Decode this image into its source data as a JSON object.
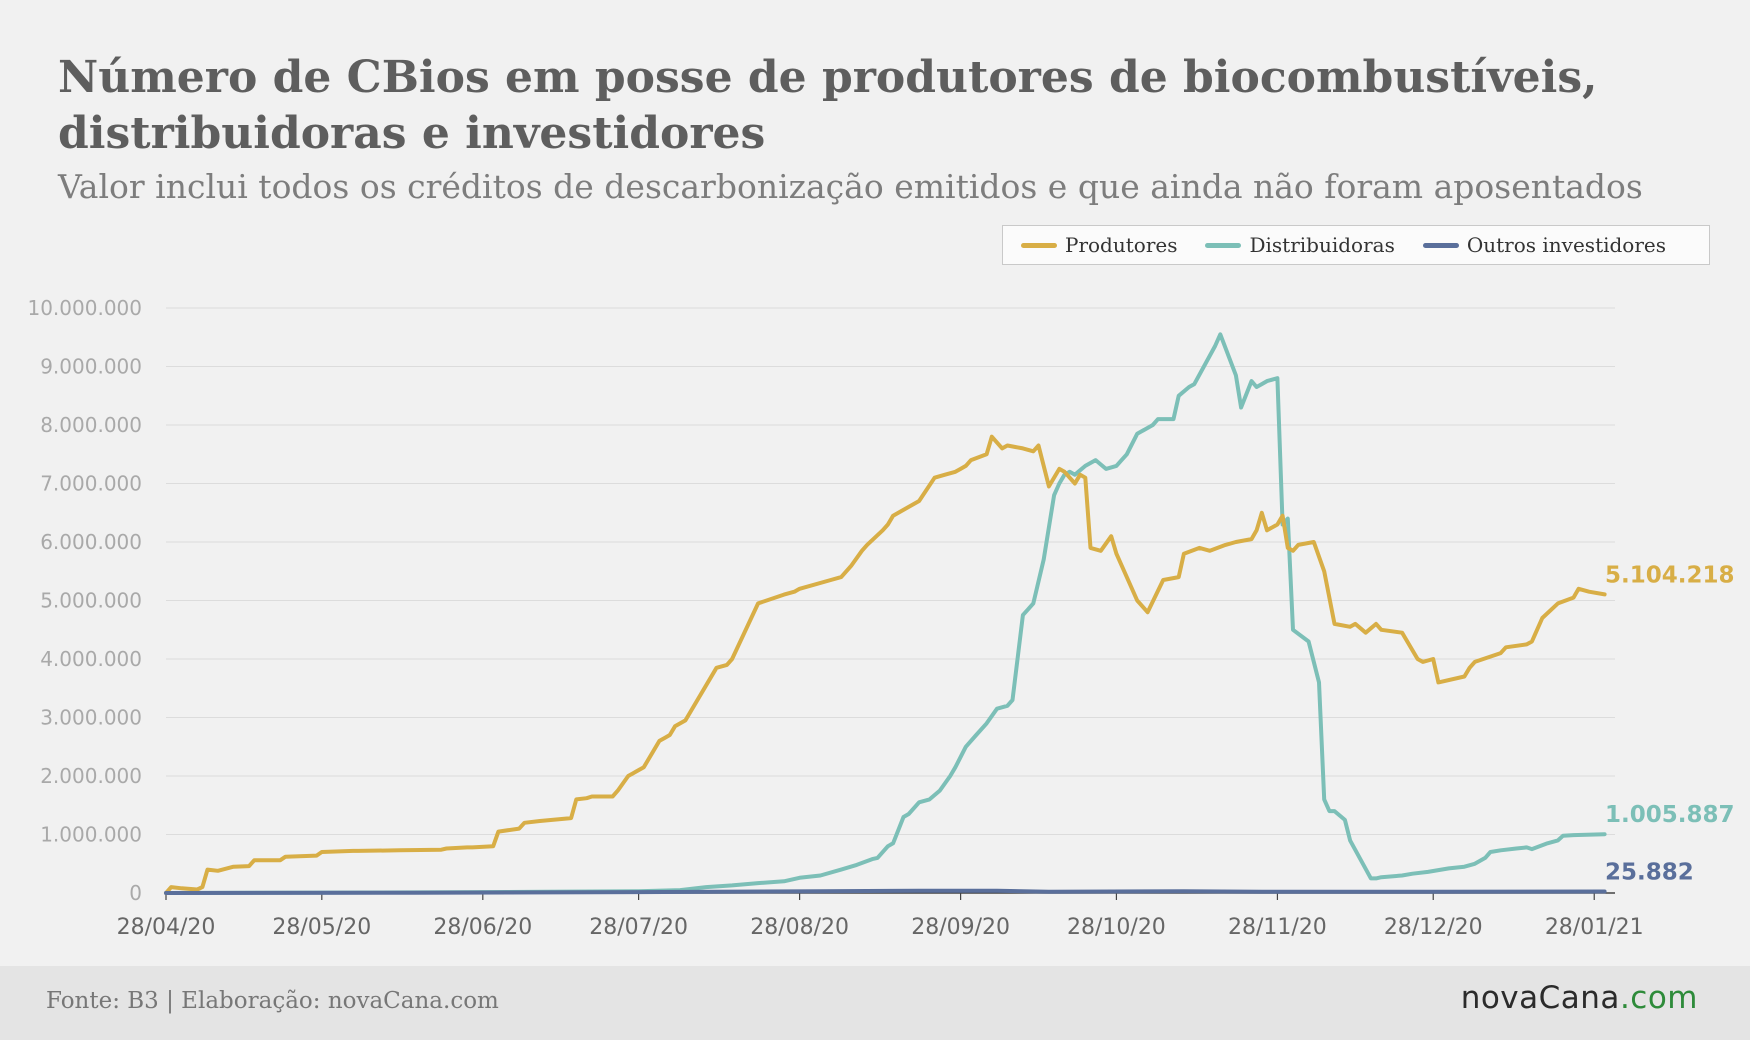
{
  "title": "Número de CBios em posse de produtores de biocombustíveis, distribuidoras e investidores",
  "subtitle": "Valor inclui todos os créditos de descarbonização emitidos e que ainda não foram aposentados",
  "footer": {
    "source": "Fonte: B3 | Elaboração: novaCana.com",
    "brand_main": "novaCana",
    "brand_suffix": ".com"
  },
  "colors": {
    "produtores": "#d8ae46",
    "distribuidoras": "#7cbfb7",
    "outros": "#5a6f9b",
    "grid": "#dcdcdc",
    "tick": "#a9a9a9",
    "xtick": "#666666"
  },
  "chart_data": {
    "type": "line",
    "title": "Número de CBios em posse de produtores de biocombustíveis, distribuidoras e investidores",
    "subtitle": "Valor inclui todos os créditos de descarbonização emitidos e que ainda não foram aposentados",
    "xlabel": "",
    "ylabel": "",
    "ylim": [
      0,
      10000000
    ],
    "yticks": [
      0,
      1000000,
      2000000,
      3000000,
      4000000,
      5000000,
      6000000,
      7000000,
      8000000,
      9000000,
      10000000
    ],
    "ytick_labels": [
      "0",
      "1.000.000",
      "2.000.000",
      "3.000.000",
      "4.000.000",
      "5.000.000",
      "6.000.000",
      "7.000.000",
      "8.000.000",
      "9.000.000",
      "10.000.000"
    ],
    "xlim": [
      "2020-04-28",
      "2021-02-01"
    ],
    "xticks": [
      "2020-04-28",
      "2020-05-28",
      "2020-06-28",
      "2020-07-28",
      "2020-08-28",
      "2020-09-28",
      "2020-10-28",
      "2020-11-28",
      "2020-12-28",
      "2021-01-28"
    ],
    "xtick_labels": [
      "28/04/20",
      "28/05/20",
      "28/06/20",
      "28/07/20",
      "28/08/20",
      "28/09/20",
      "28/10/20",
      "28/11/20",
      "28/12/20",
      "28/01/21"
    ],
    "grid": true,
    "legend_position": "top-right",
    "series": [
      {
        "name": "Produtores",
        "end_label": "5.104.218",
        "x": [
          "2020-04-28",
          "2020-04-29",
          "2020-05-01",
          "2020-05-04",
          "2020-05-05",
          "2020-05-06",
          "2020-05-08",
          "2020-05-11",
          "2020-05-14",
          "2020-05-15",
          "2020-05-20",
          "2020-05-21",
          "2020-05-27",
          "2020-05-28",
          "2020-06-03",
          "2020-06-04",
          "2020-06-12",
          "2020-06-20",
          "2020-06-21",
          "2020-06-25",
          "2020-06-26",
          "2020-06-30",
          "2020-07-01",
          "2020-07-05",
          "2020-07-06",
          "2020-07-09",
          "2020-07-15",
          "2020-07-16",
          "2020-07-18",
          "2020-07-19",
          "2020-07-23",
          "2020-07-24",
          "2020-07-26",
          "2020-07-27",
          "2020-07-28",
          "2020-07-29",
          "2020-08-01",
          "2020-08-02",
          "2020-08-03",
          "2020-08-04",
          "2020-08-06",
          "2020-08-12",
          "2020-08-14",
          "2020-08-15",
          "2020-08-20",
          "2020-08-25",
          "2020-08-27",
          "2020-08-28",
          "2020-09-03",
          "2020-09-05",
          "2020-09-07",
          "2020-09-09",
          "2020-09-10",
          "2020-09-13",
          "2020-09-14",
          "2020-09-15",
          "2020-09-20",
          "2020-09-23",
          "2020-09-25",
          "2020-09-27",
          "2020-09-28",
          "2020-09-29",
          "2020-09-30",
          "2020-10-03",
          "2020-10-04",
          "2020-10-06",
          "2020-10-07",
          "2020-10-10",
          "2020-10-12",
          "2020-10-13",
          "2020-10-14",
          "2020-10-15",
          "2020-10-17",
          "2020-10-18",
          "2020-10-20",
          "2020-10-21",
          "2020-10-22",
          "2020-10-23",
          "2020-10-25",
          "2020-10-27",
          "2020-10-28",
          "2020-11-01",
          "2020-11-03",
          "2020-11-06",
          "2020-11-09",
          "2020-11-10",
          "2020-11-13",
          "2020-11-15",
          "2020-11-18",
          "2020-11-20",
          "2020-11-23",
          "2020-11-24",
          "2020-11-25",
          "2020-11-26",
          "2020-11-28",
          "2020-11-29",
          "2020-11-30",
          "2020-12-01",
          "2020-12-02",
          "2020-12-05",
          "2020-12-07",
          "2020-12-09",
          "2020-12-12",
          "2020-12-13",
          "2020-12-15",
          "2020-12-17",
          "2020-12-18",
          "2020-12-22",
          "2020-12-25",
          "2020-12-26",
          "2020-12-28",
          "2020-12-29",
          "2021-01-03",
          "2021-01-04",
          "2021-01-05",
          "2021-01-10",
          "2021-01-11",
          "2021-01-15",
          "2021-01-16",
          "2021-01-18",
          "2021-01-21",
          "2021-01-24",
          "2021-01-25",
          "2021-01-27",
          "2021-01-30"
        ],
        "values": [
          0,
          100000,
          80000,
          60000,
          100000,
          400000,
          380000,
          450000,
          460000,
          560000,
          560000,
          620000,
          640000,
          700000,
          720000,
          720000,
          730000,
          740000,
          760000,
          780000,
          780000,
          800000,
          1050000,
          1100000,
          1200000,
          1230000,
          1280000,
          1600000,
          1620000,
          1650000,
          1650000,
          1750000,
          2000000,
          2050000,
          2100000,
          2150000,
          2600000,
          2650000,
          2700000,
          2850000,
          2950000,
          3850000,
          3900000,
          4000000,
          4950000,
          5100000,
          5150000,
          5200000,
          5350000,
          5400000,
          5600000,
          5850000,
          5950000,
          6200000,
          6300000,
          6450000,
          6700000,
          7100000,
          7150000,
          7200000,
          7250000,
          7300000,
          7400000,
          7500000,
          7800000,
          7600000,
          7650000,
          7600000,
          7550000,
          7650000,
          7300000,
          6950000,
          7250000,
          7200000,
          7000000,
          7150000,
          7100000,
          5900000,
          5850000,
          6100000,
          5800000,
          5000000,
          4800000,
          5350000,
          5400000,
          5800000,
          5900000,
          5850000,
          5950000,
          6000000,
          6050000,
          6200000,
          6500000,
          6200000,
          6300000,
          6450000,
          5900000,
          5850000,
          5950000,
          6000000,
          5500000,
          4600000,
          4550000,
          4600000,
          4450000,
          4600000,
          4500000,
          4450000,
          4000000,
          3950000,
          4000000,
          3600000,
          3700000,
          3850000,
          3950000,
          4100000,
          4200000,
          4250000,
          4300000,
          4700000,
          4950000,
          5050000,
          5200000,
          5150000,
          5104218
        ]
      },
      {
        "name": "Distribuidoras",
        "end_label": "1.005.887",
        "x": [
          "2020-04-28",
          "2020-06-15",
          "2020-07-10",
          "2020-07-28",
          "2020-08-05",
          "2020-08-10",
          "2020-08-15",
          "2020-08-20",
          "2020-08-25",
          "2020-08-28",
          "2020-09-01",
          "2020-09-05",
          "2020-09-08",
          "2020-09-11",
          "2020-09-12",
          "2020-09-14",
          "2020-09-15",
          "2020-09-17",
          "2020-09-18",
          "2020-09-20",
          "2020-09-22",
          "2020-09-24",
          "2020-09-26",
          "2020-09-27",
          "2020-09-29",
          "2020-10-01",
          "2020-10-03",
          "2020-10-05",
          "2020-10-07",
          "2020-10-08",
          "2020-10-10",
          "2020-10-11",
          "2020-10-12",
          "2020-10-14",
          "2020-10-16",
          "2020-10-17",
          "2020-10-18",
          "2020-10-19",
          "2020-10-20",
          "2020-10-22",
          "2020-10-24",
          "2020-10-26",
          "2020-10-28",
          "2020-10-29",
          "2020-10-30",
          "2020-11-01",
          "2020-11-04",
          "2020-11-05",
          "2020-11-08",
          "2020-11-09",
          "2020-11-11",
          "2020-11-12",
          "2020-11-16",
          "2020-11-17",
          "2020-11-20",
          "2020-11-21",
          "2020-11-23",
          "2020-11-24",
          "2020-11-25",
          "2020-11-26",
          "2020-11-28",
          "2020-11-29",
          "2020-11-30",
          "2020-12-01",
          "2020-12-04",
          "2020-12-06",
          "2020-12-07",
          "2020-12-08",
          "2020-12-09",
          "2020-12-11",
          "2020-12-12",
          "2020-12-16",
          "2020-12-17",
          "2020-12-18",
          "2020-12-22",
          "2020-12-24",
          "2020-12-27",
          "2020-12-31",
          "2021-01-03",
          "2021-01-05",
          "2021-01-07",
          "2021-01-08",
          "2021-01-10",
          "2021-01-13",
          "2021-01-15",
          "2021-01-16",
          "2021-01-19",
          "2021-01-21",
          "2021-01-22",
          "2021-01-24",
          "2021-01-30"
        ],
        "values": [
          0,
          10000,
          20000,
          30000,
          50000,
          100000,
          130000,
          170000,
          200000,
          260000,
          300000,
          400000,
          480000,
          580000,
          600000,
          800000,
          850000,
          1300000,
          1350000,
          1550000,
          1600000,
          1750000,
          2000000,
          2150000,
          2500000,
          2700000,
          2900000,
          3150000,
          3200000,
          3300000,
          4750000,
          4850000,
          4950000,
          5700000,
          6800000,
          7000000,
          7150000,
          7200000,
          7150000,
          7300000,
          7400000,
          7250000,
          7300000,
          7400000,
          7500000,
          7850000,
          8000000,
          8100000,
          8100000,
          8500000,
          8650000,
          8700000,
          9350000,
          9550000,
          8850000,
          8300000,
          8750000,
          8650000,
          8700000,
          8750000,
          8800000,
          6300000,
          6400000,
          4500000,
          4300000,
          3600000,
          1600000,
          1400000,
          1400000,
          1250000,
          900000,
          250000,
          250000,
          270000,
          300000,
          330000,
          360000,
          420000,
          450000,
          500000,
          600000,
          700000,
          730000,
          760000,
          780000,
          750000,
          850000,
          900000,
          980000,
          990000,
          1005887
        ]
      },
      {
        "name": "Outros investidores",
        "end_label": "25.882",
        "x": [
          "2020-04-28",
          "2020-06-15",
          "2020-07-28",
          "2020-09-01",
          "2020-09-20",
          "2020-10-05",
          "2020-10-15",
          "2020-11-10",
          "2020-11-25",
          "2020-12-28",
          "2021-01-30"
        ],
        "values": [
          0,
          5000,
          15000,
          30000,
          40000,
          40000,
          20000,
          30000,
          20000,
          20000,
          25882
        ]
      }
    ]
  }
}
